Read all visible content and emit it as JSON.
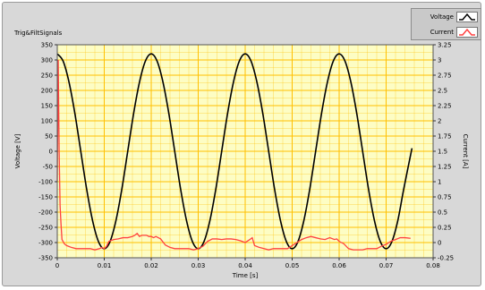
{
  "chart_title": "Trig&FiltSignals",
  "legend": [
    {
      "name": "Voltage",
      "color": "#000000"
    },
    {
      "name": "Current",
      "color": "#ff4040"
    }
  ],
  "chart_data": {
    "type": "line",
    "title": "Trig&FiltSignals",
    "xlabel": "Time [s]",
    "ylabel": "Voltage [V]",
    "y2label": "Current [A]",
    "xlim": [
      0,
      0.08
    ],
    "ylim": [
      -350,
      350
    ],
    "y2lim": [
      -0.25,
      3.25
    ],
    "xticks": [
      "0",
      "0.01",
      "0.02",
      "0.03",
      "0.04",
      "0.05",
      "0.06",
      "0.07",
      "0.08"
    ],
    "yticks": [
      "350",
      "300",
      "250",
      "200",
      "150",
      "100",
      "50",
      "0",
      "-50",
      "-100",
      "-150",
      "-200",
      "-250",
      "-300",
      "-350"
    ],
    "y2ticks": [
      "3.25",
      "3",
      "2.75",
      "2.5",
      "2.25",
      "2",
      "1.75",
      "1.5",
      "1.25",
      "1",
      "0.75",
      "0.5",
      "0.25",
      "0",
      "-0.25"
    ],
    "grid": true,
    "background_color": "#fdfdc4",
    "grid_color": "#ffc000",
    "series": [
      {
        "name": "Voltage",
        "axis": "left",
        "color": "#000000",
        "x": [
          0,
          0.00125,
          0.0025,
          0.00375,
          0.005,
          0.00625,
          0.0075,
          0.00875,
          0.01,
          0.01125,
          0.0125,
          0.01375,
          0.015,
          0.01625,
          0.0175,
          0.01875,
          0.02,
          0.02125,
          0.0225,
          0.02375,
          0.025,
          0.02625,
          0.0275,
          0.02875,
          0.03,
          0.03125,
          0.0325,
          0.03375,
          0.035,
          0.03625,
          0.0375,
          0.03875,
          0.04,
          0.04125,
          0.0425,
          0.04375,
          0.045,
          0.04625,
          0.0475,
          0.04875,
          0.05,
          0.05125,
          0.0525,
          0.05375,
          0.055,
          0.05625,
          0.0575,
          0.05875,
          0.06,
          0.06125,
          0.0625,
          0.06375,
          0.065,
          0.06625,
          0.0675,
          0.06875,
          0.07,
          0.07125,
          0.0725,
          0.07375,
          0.0755
        ],
        "y": [
          320,
          296,
          227,
          124,
          0,
          -124,
          -227,
          -296,
          -320,
          -296,
          -227,
          -124,
          0,
          124,
          227,
          296,
          320,
          296,
          227,
          124,
          0,
          -124,
          -227,
          -296,
          -320,
          -296,
          -227,
          -124,
          0,
          124,
          227,
          296,
          320,
          296,
          227,
          124,
          0,
          -124,
          -227,
          -296,
          -320,
          -296,
          -227,
          -124,
          0,
          124,
          227,
          296,
          320,
          296,
          227,
          124,
          0,
          -124,
          -227,
          -296,
          -320,
          -296,
          -227,
          -124,
          10
        ]
      },
      {
        "name": "Current",
        "axis": "right",
        "color": "#ff4040",
        "x": [
          0,
          0.0002,
          0.0004,
          0.0006,
          0.0008,
          0.001,
          0.0015,
          0.002,
          0.003,
          0.004,
          0.005,
          0.006,
          0.007,
          0.008,
          0.009,
          0.0095,
          0.01,
          0.0105,
          0.011,
          0.012,
          0.013,
          0.014,
          0.015,
          0.016,
          0.0165,
          0.017,
          0.0175,
          0.018,
          0.019,
          0.0195,
          0.02,
          0.0205,
          0.021,
          0.022,
          0.023,
          0.024,
          0.025,
          0.026,
          0.027,
          0.028,
          0.029,
          0.03,
          0.031,
          0.032,
          0.033,
          0.034,
          0.035,
          0.036,
          0.037,
          0.038,
          0.039,
          0.04,
          0.041,
          0.0415,
          0.042,
          0.043,
          0.044,
          0.045,
          0.046,
          0.047,
          0.048,
          0.049,
          0.05,
          0.051,
          0.052,
          0.053,
          0.054,
          0.055,
          0.056,
          0.057,
          0.058,
          0.059,
          0.0595,
          0.06,
          0.061,
          0.062,
          0.063,
          0.064,
          0.065,
          0.066,
          0.067,
          0.068,
          0.069,
          0.07,
          0.071,
          0.072,
          0.073,
          0.074,
          0.0752
        ],
        "y": [
          1.0,
          3.0,
          1.5,
          0.6,
          0.3,
          0.05,
          -0.02,
          -0.05,
          -0.08,
          -0.1,
          -0.1,
          -0.1,
          -0.1,
          -0.12,
          -0.1,
          -0.08,
          -0.1,
          -0.06,
          0.02,
          0.05,
          0.06,
          0.08,
          0.08,
          0.1,
          0.12,
          0.15,
          0.1,
          0.12,
          0.12,
          0.1,
          0.1,
          0.08,
          0.1,
          0.06,
          -0.04,
          -0.08,
          -0.1,
          -0.1,
          -0.1,
          -0.1,
          -0.12,
          -0.1,
          -0.06,
          0.02,
          0.06,
          0.06,
          0.05,
          0.06,
          0.06,
          0.05,
          0.03,
          0.0,
          0.05,
          0.08,
          -0.05,
          -0.08,
          -0.1,
          -0.12,
          -0.1,
          -0.1,
          -0.1,
          -0.1,
          -0.05,
          0.0,
          0.05,
          0.08,
          0.1,
          0.08,
          0.06,
          0.05,
          0.08,
          0.05,
          0.06,
          0.02,
          -0.02,
          -0.1,
          -0.12,
          -0.12,
          -0.12,
          -0.1,
          -0.1,
          -0.1,
          -0.06,
          -0.03,
          0.02,
          0.05,
          0.08,
          0.08,
          0.07
        ]
      }
    ]
  }
}
